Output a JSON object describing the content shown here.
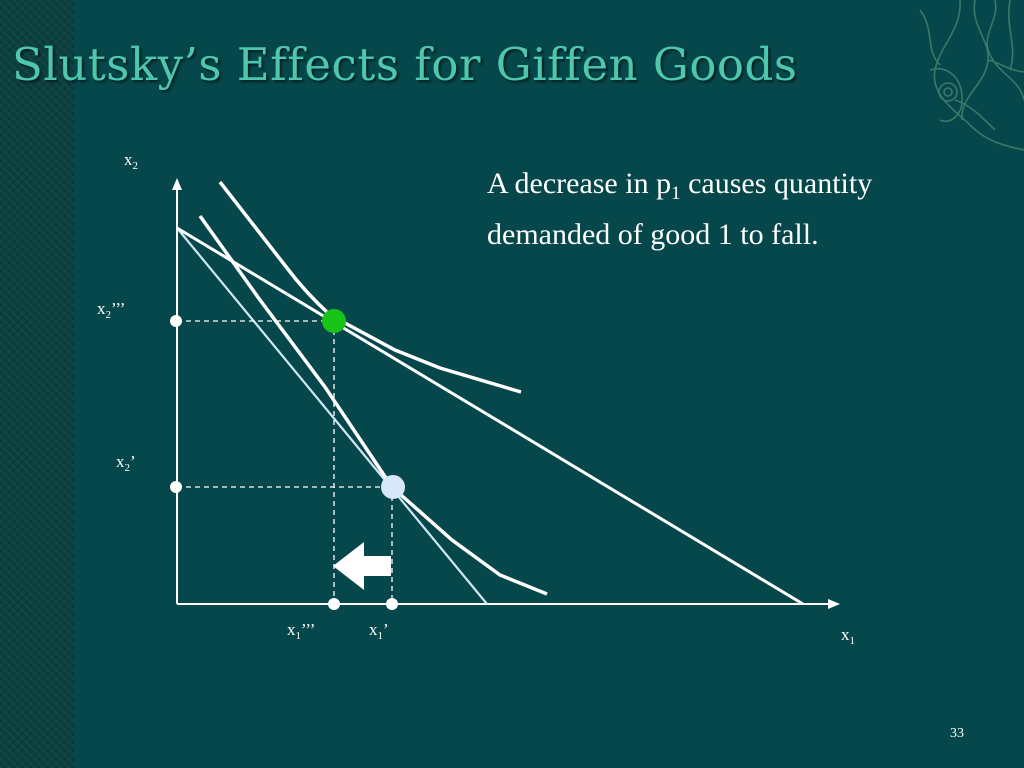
{
  "slide": {
    "title": "Slutsky’s Effects for Giffen Goods",
    "page_number": "33",
    "colors": {
      "background": "#05474a",
      "title": "#4fc7ae",
      "lines": "#ffffff",
      "budget_line_light": "#cfe8f5",
      "point_green": "#18c418",
      "point_light_blue": "#d6e8fa"
    },
    "decoration_icon": "seaweed-ornament-icon"
  },
  "caption": {
    "text1": "A decrease in p",
    "sub": "1",
    "text2": " causes quantity demanded of good 1 to fall."
  },
  "axes": {
    "y_label": {
      "main": "x",
      "sub": "2"
    },
    "x_label": {
      "main": "x",
      "sub": "1"
    }
  },
  "tick_labels": {
    "x2_triple": {
      "main": "x",
      "sub": "2",
      "suffix": "’’’"
    },
    "x2_single": {
      "main": "x",
      "sub": "2",
      "suffix": "’"
    },
    "x1_triple": {
      "main": "x",
      "sub": "1",
      "suffix": "’’’"
    },
    "x1_single": {
      "main": "x",
      "sub": "1",
      "suffix": "’"
    }
  },
  "arrow_icon": "left-arrow-icon"
}
